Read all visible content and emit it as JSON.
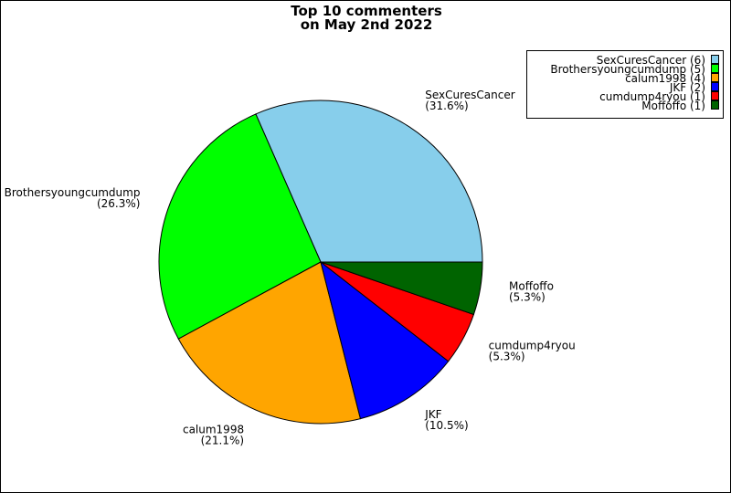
{
  "chart_data": {
    "type": "pie",
    "title_lines": [
      "Top 10 commenters",
      "on May 2nd 2022"
    ],
    "start_angle_deg": 0,
    "direction": "counterclockwise",
    "legend_placement": "top-right",
    "slices": [
      {
        "label": "SexCuresCancer",
        "value": 6,
        "percent": "(31.6%)",
        "legend": "SexCuresCancer (6)",
        "color": "#87CEEB"
      },
      {
        "label": "Brothersyoungcumdump",
        "value": 5,
        "percent": "(26.3%)",
        "legend": "Brothersyoungcumdump (5)",
        "color": "#00FF00"
      },
      {
        "label": "calum1998",
        "value": 4,
        "percent": "(21.1%)",
        "legend": "calum1998 (4)",
        "color": "#FFA500"
      },
      {
        "label": "JKF",
        "value": 2,
        "percent": "(10.5%)",
        "legend": "JKF (2)",
        "color": "#0000FF"
      },
      {
        "label": "cumdump4ryou",
        "value": 1,
        "percent": "(5.3%)",
        "legend": "cumdump4ryou (1)",
        "color": "#FF0000"
      },
      {
        "label": "Moffoffo",
        "value": 1,
        "percent": "(5.3%)",
        "legend": "Moffoffo (1)",
        "color": "#006400"
      }
    ]
  }
}
